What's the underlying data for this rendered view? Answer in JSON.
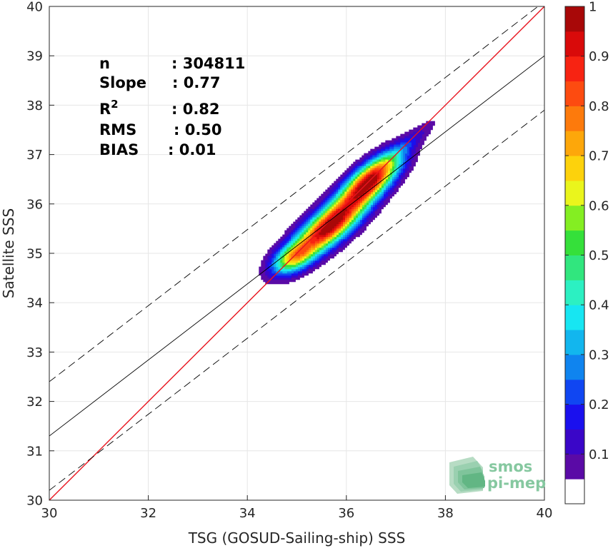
{
  "chart_data": {
    "type": "heatmap",
    "title": "",
    "xlabel": "TSG (GOSUD-Sailing-ship) SSS",
    "ylabel": "Satellite SSS",
    "xlim": [
      30,
      40
    ],
    "ylim": [
      30,
      40
    ],
    "xticks": [
      "30",
      "32",
      "34",
      "36",
      "38",
      "40"
    ],
    "yticks": [
      "30",
      "31",
      "32",
      "33",
      "34",
      "35",
      "36",
      "37",
      "38",
      "39",
      "40"
    ],
    "grid": true,
    "stats": [
      {
        "label": "n",
        "value": ": 304811"
      },
      {
        "label": "Slope",
        "value": ": 0.77"
      },
      {
        "label": "R",
        "sup": "2",
        "value": ": 0.82"
      },
      {
        "label": "RMS",
        "value": ": 0.50"
      },
      {
        "label": "BIAS",
        "value": ": 0.01"
      }
    ],
    "reference_lines": [
      {
        "name": "identity",
        "color": "#e8141e",
        "style": "solid",
        "slope": 1,
        "intercept": 0
      },
      {
        "name": "fit",
        "color": "#000000",
        "style": "solid",
        "points": [
          [
            30,
            31.3
          ],
          [
            40,
            39.0
          ]
        ]
      },
      {
        "name": "upper-bound",
        "color": "#000000",
        "style": "dashed",
        "points": [
          [
            30,
            32.4
          ],
          [
            40,
            40.1
          ]
        ]
      },
      {
        "name": "lower-bound",
        "color": "#000000",
        "style": "dashed",
        "points": [
          [
            30,
            30.2
          ],
          [
            40,
            37.9
          ]
        ]
      }
    ],
    "density_peaks": [
      {
        "x": 35.65,
        "y": 35.55,
        "amplitude": 1.0,
        "sx": 0.65,
        "sy": 0.22,
        "rotation_deg": 40
      },
      {
        "x": 36.5,
        "y": 36.5,
        "amplitude": 0.9,
        "sx": 0.5,
        "sy": 0.2,
        "rotation_deg": 40
      },
      {
        "x": 34.9,
        "y": 34.9,
        "amplitude": 0.45,
        "sx": 0.3,
        "sy": 0.17,
        "rotation_deg": 30
      },
      {
        "x": 37.2,
        "y": 37.2,
        "amplitude": 0.12,
        "sx": 0.55,
        "sy": 0.11,
        "rotation_deg": 40
      }
    ],
    "colorbar": {
      "range": [
        0,
        1
      ],
      "ticks": [
        "0.1",
        "0.2",
        "0.3",
        "0.4",
        "0.5",
        "0.6",
        "0.7",
        "0.8",
        "0.9",
        "1"
      ],
      "levels": [
        {
          "from": 0.05,
          "color": "#5a0aa6"
        },
        {
          "from": 0.1,
          "color": "#3a06c8"
        },
        {
          "from": 0.15,
          "color": "#1a10ee"
        },
        {
          "from": 0.2,
          "color": "#1046f2"
        },
        {
          "from": 0.25,
          "color": "#0f84ef"
        },
        {
          "from": 0.3,
          "color": "#12b6ee"
        },
        {
          "from": 0.35,
          "color": "#17e6f2"
        },
        {
          "from": 0.4,
          "color": "#2cf0c2"
        },
        {
          "from": 0.45,
          "color": "#31e67e"
        },
        {
          "from": 0.5,
          "color": "#35e03a"
        },
        {
          "from": 0.55,
          "color": "#84ee22"
        },
        {
          "from": 0.6,
          "color": "#eaf51c"
        },
        {
          "from": 0.65,
          "color": "#fdd20c"
        },
        {
          "from": 0.7,
          "color": "#fda70a"
        },
        {
          "from": 0.75,
          "color": "#fd7a0c"
        },
        {
          "from": 0.8,
          "color": "#fd4b10"
        },
        {
          "from": 0.85,
          "color": "#f72312"
        },
        {
          "from": 0.9,
          "color": "#d90a0a"
        },
        {
          "from": 0.95,
          "color": "#a80808"
        }
      ]
    }
  },
  "logo": {
    "line1": "smos",
    "line2": "pi-mep"
  }
}
